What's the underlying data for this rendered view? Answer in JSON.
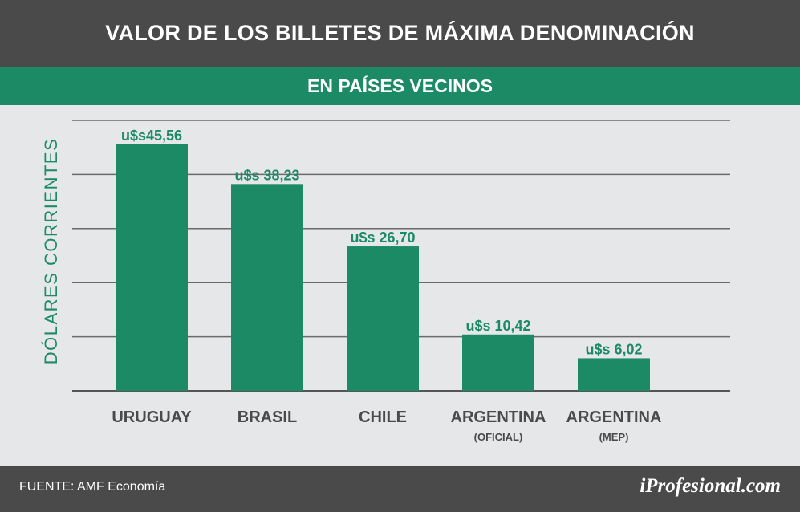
{
  "chart_data": {
    "type": "bar",
    "title": "VALOR DE LOS BILLETES DE MÁXIMA DENOMINACIÓN",
    "subtitle": "EN PAÍSES VECINOS",
    "ylabel": "DÓLARES CORRIENTES",
    "xlabel": "",
    "categories": [
      "URUGUAY",
      "BRASIL",
      "CHILE",
      "ARGENTINA",
      "ARGENTINA"
    ],
    "category_notes": [
      "",
      "",
      "",
      "(OFICIAL)",
      "(MEP)"
    ],
    "values": [
      45.56,
      38.23,
      26.7,
      10.42,
      6.02
    ],
    "data_labels": [
      "u$s45,56",
      "u$s 38,23",
      "u$s 26,70",
      "u$s 10,42",
      "u$s 6,02"
    ],
    "ylim": [
      0,
      50
    ],
    "grid": true,
    "bar_color": "#1d8a66",
    "label_color": "#1d8a66"
  },
  "footer": {
    "source": "FUENTE: AMF Economía",
    "brand": "iProfesional.com"
  }
}
